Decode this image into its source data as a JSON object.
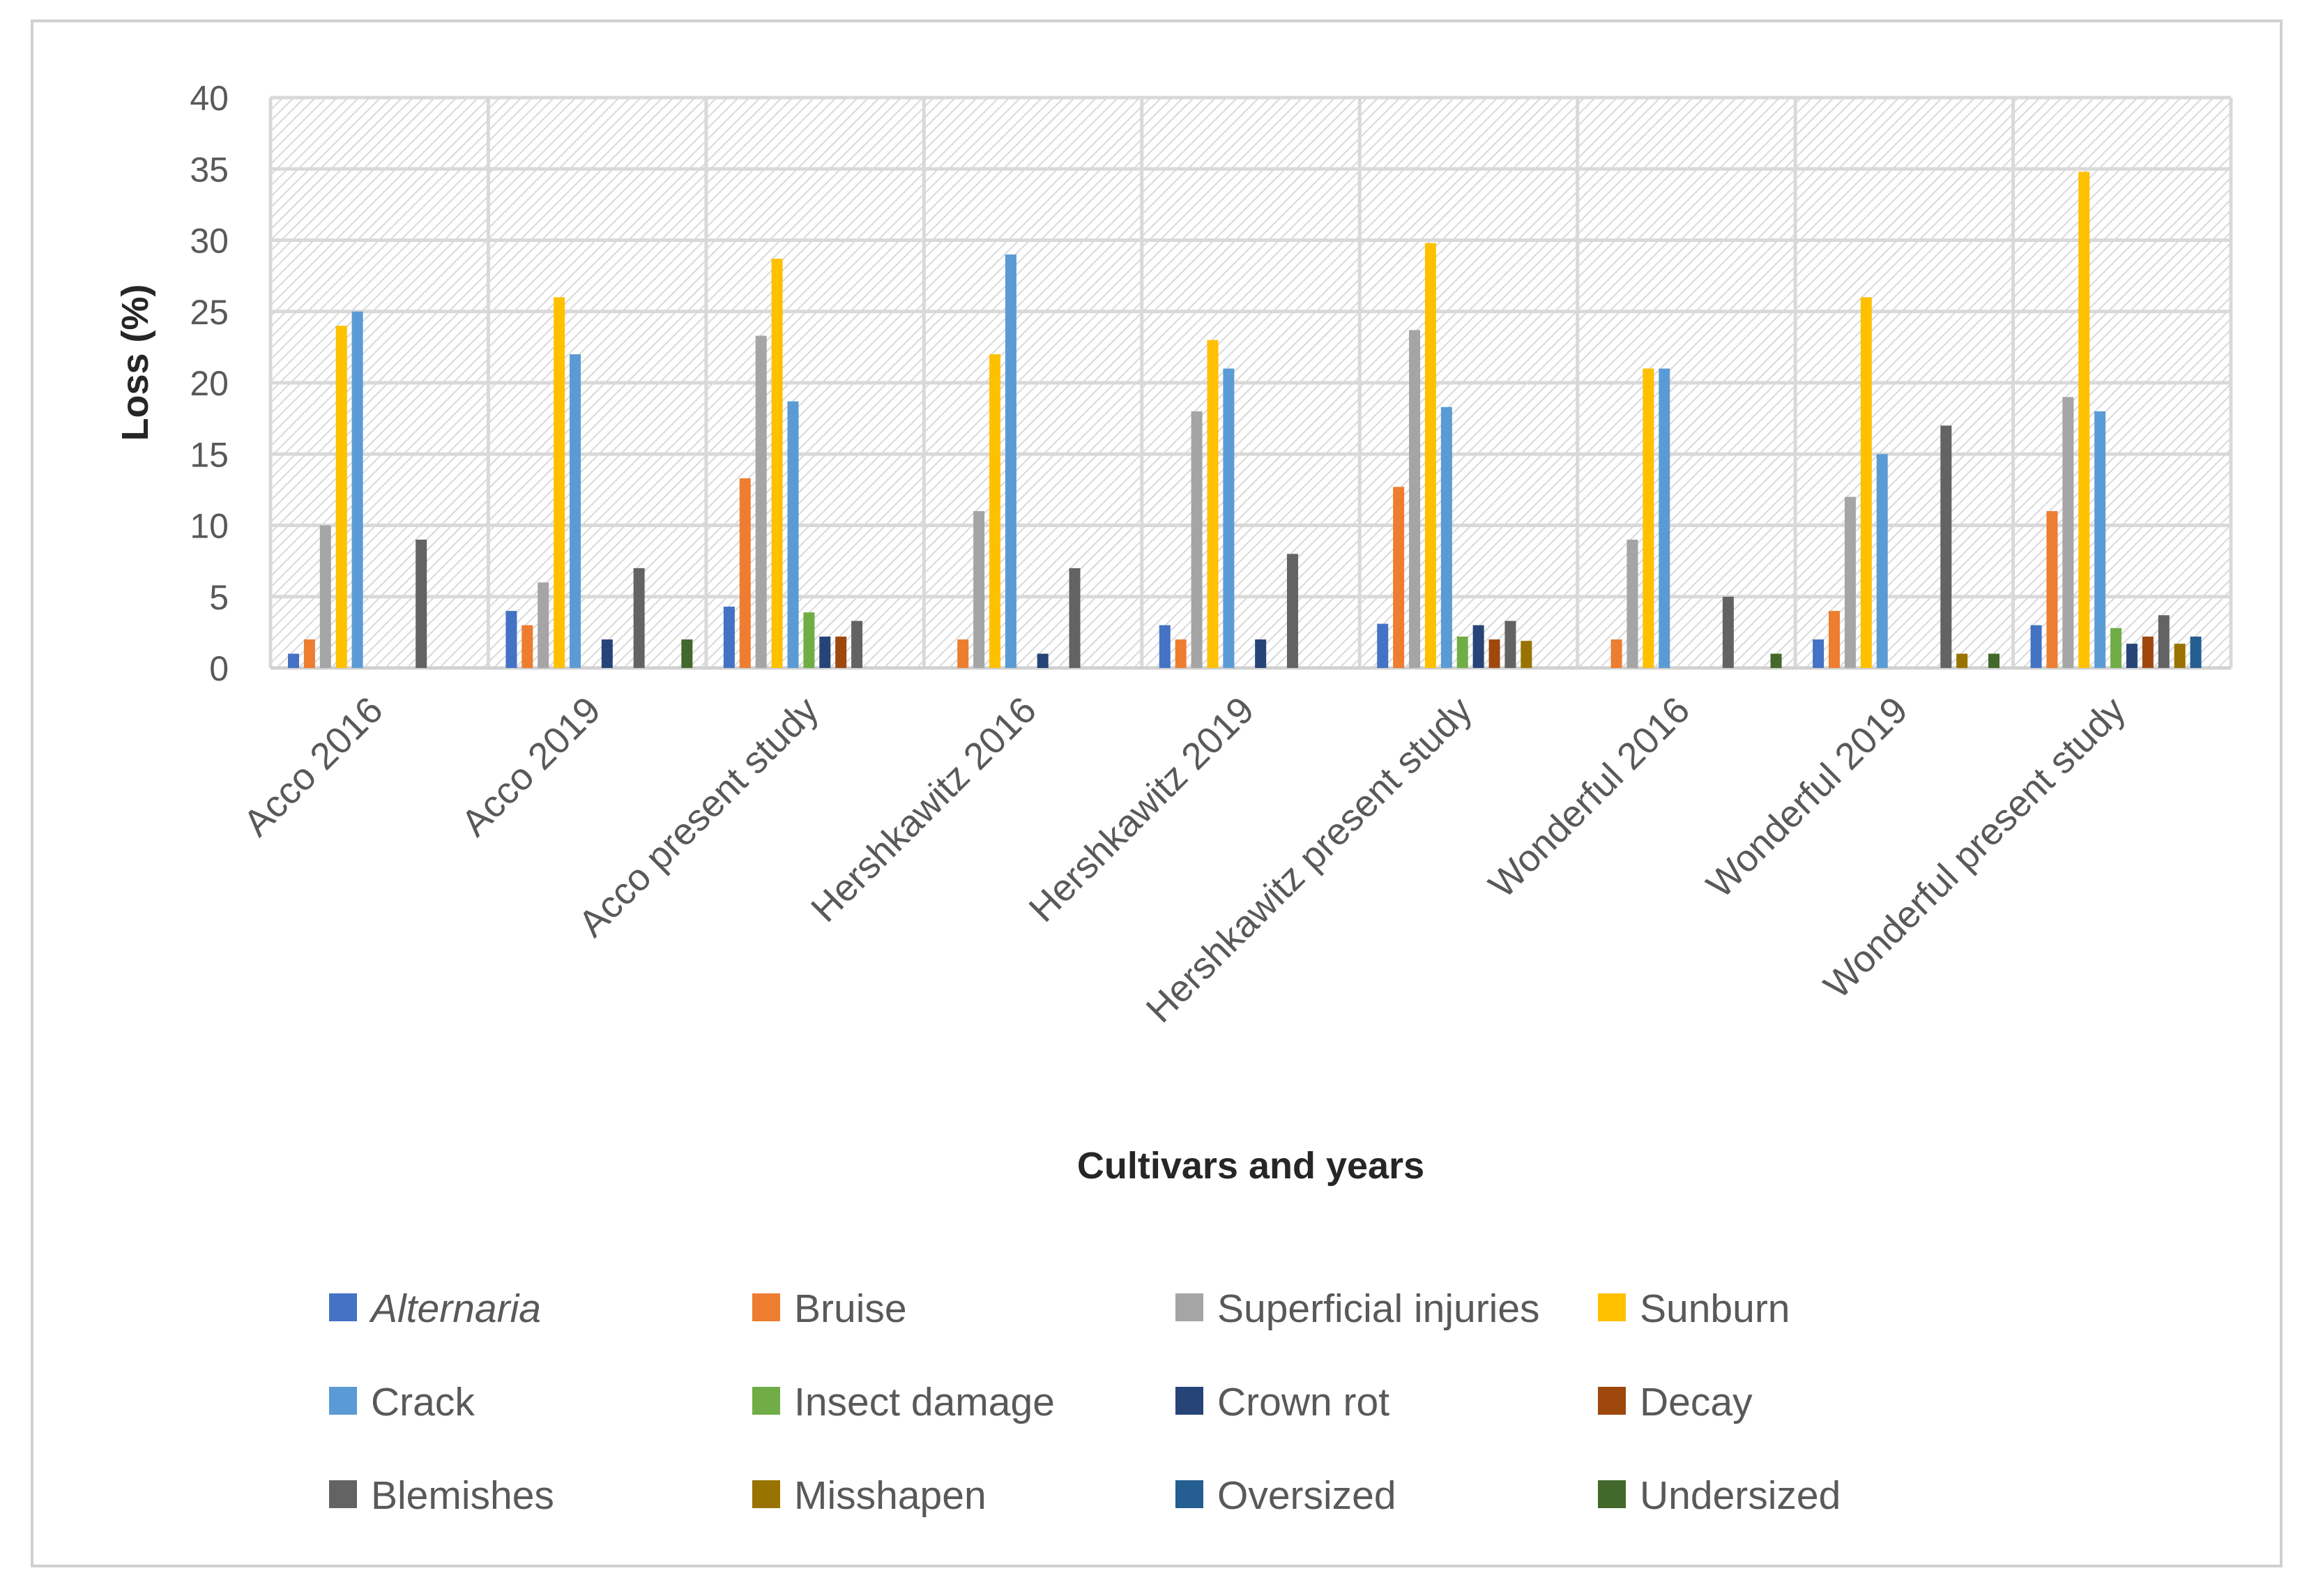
{
  "chart_data": {
    "type": "bar",
    "title": "",
    "xlabel": "Cultivars and years",
    "ylabel": "Loss (%)",
    "ylim": [
      0,
      40
    ],
    "yticks": [
      0,
      5,
      10,
      15,
      20,
      25,
      30,
      35,
      40
    ],
    "grid": true,
    "legend_position": "bottom",
    "categories": [
      "Acco 2016",
      "Acco 2019",
      "Acco present study",
      "Hershkawitz 2016",
      "Hershkawitz 2019",
      "Hershkawitz present study",
      "Wonderful 2016",
      "Wonderful 2019",
      "Wonderful present study"
    ],
    "series": [
      {
        "name": "Alternaria",
        "italic": true,
        "color": "#4472c4",
        "values": [
          1,
          4,
          4.3,
          0,
          3,
          3.1,
          0,
          2,
          3
        ]
      },
      {
        "name": "Bruise",
        "color": "#ed7d31",
        "values": [
          2,
          3,
          13.3,
          2,
          2,
          12.7,
          2,
          4,
          11
        ]
      },
      {
        "name": "Superficial injuries",
        "color": "#a5a5a5",
        "values": [
          10,
          6,
          23.3,
          11,
          18,
          23.7,
          9,
          12,
          19
        ]
      },
      {
        "name": "Sunburn",
        "color": "#ffc000",
        "values": [
          24,
          26,
          28.7,
          22,
          23,
          29.8,
          21,
          26,
          34.8
        ]
      },
      {
        "name": "Crack",
        "color": "#5b9bd5",
        "values": [
          25,
          22,
          18.7,
          29,
          21,
          18.3,
          21,
          15,
          18
        ]
      },
      {
        "name": "Insect damage",
        "color": "#70ad47",
        "values": [
          0,
          0,
          3.9,
          0,
          0,
          2.2,
          0,
          0,
          2.8
        ]
      },
      {
        "name": "Crown rot",
        "color": "#264478",
        "values": [
          0,
          2,
          2.2,
          1,
          2,
          3,
          0,
          0,
          1.7
        ]
      },
      {
        "name": "Decay",
        "color": "#9e480e",
        "values": [
          0,
          0,
          2.2,
          0,
          0,
          2,
          0,
          0,
          2.2
        ]
      },
      {
        "name": "Blemishes",
        "color": "#636363",
        "values": [
          9,
          7,
          3.3,
          7,
          8,
          3.3,
          5,
          17,
          3.7
        ]
      },
      {
        "name": "Misshapen",
        "color": "#997300",
        "values": [
          0,
          0,
          0,
          0,
          0,
          1.9,
          0,
          1,
          1.7
        ]
      },
      {
        "name": "Oversized",
        "color": "#255e91",
        "values": [
          0,
          0,
          0,
          0,
          0,
          0,
          0,
          0,
          2.2
        ]
      },
      {
        "name": "Undersized",
        "color": "#43682b",
        "values": [
          0,
          2,
          0,
          0,
          0,
          0,
          1,
          1,
          0
        ]
      }
    ]
  }
}
